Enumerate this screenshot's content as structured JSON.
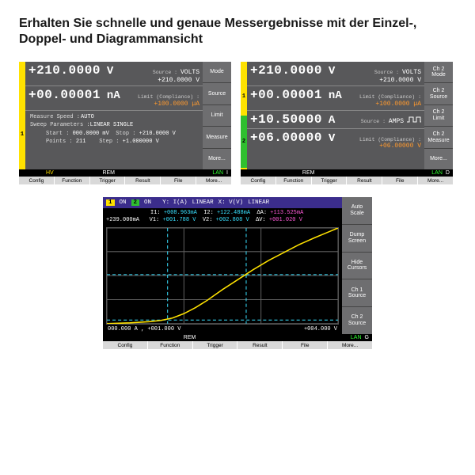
{
  "headline": "Erhalten Sie schnelle und genaue Messergebnisse mit der Einzel-, Doppel- und Diagrammansicht",
  "colors": {
    "panel_bg": "#58585a",
    "yellow": "#ffe200",
    "green": "#2fbf2f",
    "orange": "#ff9a2e",
    "cyan": "#38e0ff",
    "magenta": "#ff5ad8",
    "purple": "#3b2d8c",
    "lan_green": "#2fff2f"
  },
  "panel1": {
    "ch_num": "1",
    "row1": {
      "value": "+210.0000",
      "unit": "V",
      "source_label": "Source :",
      "source_val": "VOLTS",
      "sub_val": "+210.0000 V"
    },
    "row2": {
      "value": "+00.00001",
      "unit": "nA",
      "limit_label": "Limit (Compliance) :",
      "limit_val": "+100.0000 µA"
    },
    "info": {
      "measure_speed_label": "Measure Speed :",
      "measure_speed": "AUTO",
      "sweep_label": "Sweep Parameters :",
      "sweep_mode": "LINEAR SINGLE",
      "start_label": "Start :",
      "start": "000.0000 mV",
      "stop_label": "Stop :",
      "stop": "+210.0000 V",
      "points_label": "Points :",
      "points": "211",
      "step_label": "Step :",
      "step": "+1.000000 V"
    },
    "side": [
      "Mode",
      "Source",
      "Limit",
      "Measure",
      "More..."
    ],
    "status": {
      "hv": "HV",
      "rem": "REM",
      "lan": "LAN",
      "ind": "I"
    },
    "menu": [
      "Config",
      "Function",
      "Trigger",
      "Result",
      "File",
      "More..."
    ]
  },
  "panel2": {
    "ch1_num": "1",
    "ch2_num": "2",
    "row1": {
      "value": "+210.0000",
      "unit": "V",
      "source_label": "Source :",
      "source_val": "VOLTS",
      "sub_val": "+210.0000 V"
    },
    "row2": {
      "value": "+00.00001",
      "unit": "nA",
      "limit_label": "Limit (Compliance) :",
      "limit_val": "+100.0000 µA"
    },
    "row3": {
      "value": "+10.50000",
      "unit": "A",
      "source_label": "Source :",
      "source_val": "AMPS",
      "pulse": true
    },
    "row4": {
      "value": "+06.00000",
      "unit": "V",
      "limit_label": "Limit (Compliance) :",
      "limit_val": "+06.00000 V"
    },
    "side": [
      "Ch 2\nMode",
      "Ch 2\nSource",
      "Ch 2\nLimit",
      "Ch 2\nMeasure",
      "More..."
    ],
    "status": {
      "rem": "REM",
      "lan": "LAN",
      "ind": "D"
    },
    "menu": [
      "Config",
      "Function",
      "Trigger",
      "Result",
      "File",
      "More..."
    ]
  },
  "panel3": {
    "header": {
      "ch1": "ON",
      "ch2": "ON",
      "y_label": "Y: I(A)",
      "y_mode": "LINEAR",
      "x_label": "X: V(V)",
      "x_mode": "LINEAR"
    },
    "vals_line1": {
      "i1_label": "I1:",
      "i1": "+008.963mA",
      "i2_label": "I2:",
      "i2": "+122.488mA",
      "di_label": "ΔA:",
      "di": "+113.525mA"
    },
    "vals_line2": {
      "y_left": "+239.000mA",
      "v1_label": "V1:",
      "v1": "+001.788 V",
      "v2_label": "V2:",
      "v2": "+002.808 V",
      "dv_label": "ΔV:",
      "dv": "+001.020 V"
    },
    "plot": {
      "xlim": [
        1.0,
        4.0
      ],
      "ylim": [
        0,
        239
      ],
      "grid_color": "#606060",
      "cursor_color": "#38e0ff",
      "curve_color": "#ffe200",
      "xticks": [
        1.0,
        2.0,
        3.0,
        4.0
      ],
      "yticks": [
        0,
        60,
        120,
        180,
        239
      ],
      "cursor_x1": 1.788,
      "cursor_x2": 2.808,
      "cursor_y1": 8.963,
      "cursor_y2": 122.488,
      "curve": [
        [
          1.0,
          0
        ],
        [
          1.3,
          2
        ],
        [
          1.55,
          5
        ],
        [
          1.7,
          8
        ],
        [
          1.85,
          14
        ],
        [
          2.0,
          25
        ],
        [
          2.15,
          40
        ],
        [
          2.3,
          58
        ],
        [
          2.5,
          85
        ],
        [
          2.7,
          110
        ],
        [
          2.9,
          135
        ],
        [
          3.1,
          158
        ],
        [
          3.3,
          178
        ],
        [
          3.5,
          198
        ],
        [
          3.7,
          215
        ],
        [
          3.85,
          227
        ],
        [
          4.0,
          239
        ]
      ]
    },
    "xaxis": {
      "left": "000.000 A , +001.000 V",
      "right": "+004.000 V"
    },
    "side": [
      "Auto\nScale",
      "Dump\nScreen",
      "Hide\nCursors",
      "Ch 1\nSource",
      "Ch 2\nSource"
    ],
    "status": {
      "rem": "REM",
      "lan": "LAN",
      "ind": "G"
    },
    "menu": [
      "Config",
      "Function",
      "Trigger",
      "Result",
      "File",
      "More..."
    ]
  }
}
